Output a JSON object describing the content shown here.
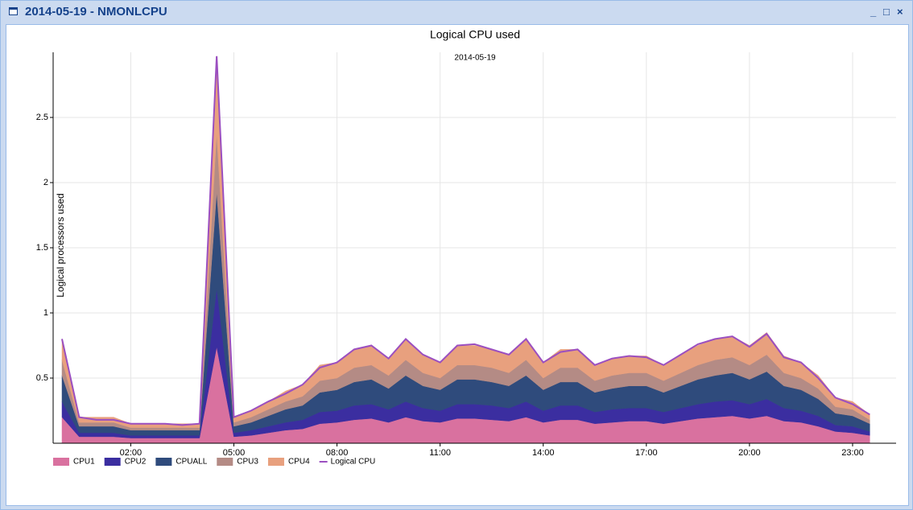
{
  "window": {
    "title": "2014-05-19 - NMONLCPU"
  },
  "chart_data": {
    "type": "stacked-area",
    "title": "Logical CPU used",
    "subtitle": "2014-05-19",
    "y_label": "Logical processors used",
    "x": [
      "00:00",
      "00:30",
      "01:00",
      "01:30",
      "02:00",
      "02:30",
      "03:00",
      "03:30",
      "04:00",
      "04:30",
      "05:00",
      "05:30",
      "06:00",
      "06:30",
      "07:00",
      "07:30",
      "08:00",
      "08:30",
      "09:00",
      "09:30",
      "10:00",
      "10:30",
      "11:00",
      "11:30",
      "12:00",
      "12:30",
      "13:00",
      "13:30",
      "14:00",
      "14:30",
      "15:00",
      "15:30",
      "16:00",
      "16:30",
      "17:00",
      "17:30",
      "18:00",
      "18:30",
      "19:00",
      "19:30",
      "20:00",
      "20:30",
      "21:00",
      "21:30",
      "22:00",
      "22:30",
      "23:00",
      "23:30"
    ],
    "xlim": [
      "00:00",
      "23:45"
    ],
    "xticks": [
      "02:00",
      "05:00",
      "08:00",
      "11:00",
      "14:00",
      "17:00",
      "20:00",
      "23:00"
    ],
    "ylim": [
      0,
      3
    ],
    "yticks": [
      0.5,
      1,
      1.5,
      2,
      2.5
    ],
    "grid": true,
    "legend": "bottom",
    "series": [
      {
        "name": "CPU1",
        "type": "area",
        "color": "#d9719f",
        "values": [
          0.2,
          0.05,
          0.05,
          0.05,
          0.04,
          0.04,
          0.04,
          0.04,
          0.04,
          0.74,
          0.05,
          0.06,
          0.08,
          0.1,
          0.11,
          0.15,
          0.16,
          0.18,
          0.19,
          0.16,
          0.2,
          0.17,
          0.16,
          0.19,
          0.19,
          0.18,
          0.17,
          0.2,
          0.16,
          0.18,
          0.18,
          0.15,
          0.16,
          0.17,
          0.17,
          0.15,
          0.17,
          0.19,
          0.2,
          0.21,
          0.19,
          0.21,
          0.17,
          0.16,
          0.13,
          0.09,
          0.08,
          0.06
        ]
      },
      {
        "name": "CPU2",
        "type": "area",
        "color": "#3b2ea0",
        "values": [
          0.12,
          0.03,
          0.03,
          0.03,
          0.02,
          0.02,
          0.02,
          0.02,
          0.02,
          0.45,
          0.03,
          0.04,
          0.05,
          0.06,
          0.07,
          0.09,
          0.09,
          0.11,
          0.11,
          0.1,
          0.12,
          0.1,
          0.09,
          0.11,
          0.11,
          0.11,
          0.1,
          0.12,
          0.09,
          0.11,
          0.11,
          0.09,
          0.1,
          0.1,
          0.1,
          0.09,
          0.1,
          0.11,
          0.12,
          0.12,
          0.11,
          0.13,
          0.1,
          0.09,
          0.08,
          0.05,
          0.05,
          0.03
        ]
      },
      {
        "name": "CPUALL",
        "type": "area",
        "color": "#2f4b7c",
        "values": [
          0.2,
          0.05,
          0.05,
          0.05,
          0.04,
          0.04,
          0.04,
          0.04,
          0.04,
          0.74,
          0.05,
          0.06,
          0.08,
          0.1,
          0.11,
          0.15,
          0.16,
          0.18,
          0.19,
          0.16,
          0.2,
          0.17,
          0.16,
          0.19,
          0.19,
          0.18,
          0.17,
          0.2,
          0.16,
          0.18,
          0.18,
          0.15,
          0.16,
          0.17,
          0.17,
          0.15,
          0.17,
          0.19,
          0.2,
          0.21,
          0.19,
          0.21,
          0.17,
          0.16,
          0.13,
          0.09,
          0.08,
          0.06
        ]
      },
      {
        "name": "CPU3",
        "type": "area",
        "color": "#b48b85",
        "values": [
          0.12,
          0.03,
          0.03,
          0.03,
          0.02,
          0.02,
          0.02,
          0.02,
          0.02,
          0.45,
          0.03,
          0.04,
          0.05,
          0.06,
          0.07,
          0.09,
          0.09,
          0.11,
          0.11,
          0.1,
          0.12,
          0.1,
          0.09,
          0.11,
          0.11,
          0.11,
          0.1,
          0.12,
          0.09,
          0.11,
          0.11,
          0.09,
          0.1,
          0.1,
          0.1,
          0.09,
          0.1,
          0.11,
          0.12,
          0.12,
          0.11,
          0.13,
          0.1,
          0.09,
          0.08,
          0.05,
          0.05,
          0.03
        ]
      },
      {
        "name": "CPU4",
        "type": "area",
        "color": "#e8a07e",
        "values": [
          0.16,
          0.04,
          0.04,
          0.04,
          0.03,
          0.03,
          0.03,
          0.03,
          0.03,
          0.59,
          0.04,
          0.05,
          0.06,
          0.08,
          0.09,
          0.12,
          0.12,
          0.14,
          0.15,
          0.13,
          0.16,
          0.14,
          0.12,
          0.15,
          0.15,
          0.14,
          0.14,
          0.16,
          0.12,
          0.14,
          0.14,
          0.12,
          0.13,
          0.13,
          0.13,
          0.12,
          0.14,
          0.15,
          0.16,
          0.16,
          0.15,
          0.17,
          0.13,
          0.12,
          0.1,
          0.07,
          0.06,
          0.04
        ]
      },
      {
        "name": "Logical CPU",
        "type": "line",
        "color": "#9b4fc0",
        "values": [
          0.8,
          0.2,
          0.18,
          0.18,
          0.15,
          0.15,
          0.15,
          0.14,
          0.15,
          2.97,
          0.2,
          0.25,
          0.32,
          0.38,
          0.45,
          0.58,
          0.62,
          0.72,
          0.75,
          0.65,
          0.8,
          0.68,
          0.62,
          0.75,
          0.76,
          0.72,
          0.68,
          0.8,
          0.62,
          0.7,
          0.72,
          0.6,
          0.65,
          0.67,
          0.66,
          0.6,
          0.68,
          0.76,
          0.8,
          0.82,
          0.74,
          0.84,
          0.66,
          0.62,
          0.5,
          0.35,
          0.3,
          0.22
        ]
      }
    ]
  }
}
